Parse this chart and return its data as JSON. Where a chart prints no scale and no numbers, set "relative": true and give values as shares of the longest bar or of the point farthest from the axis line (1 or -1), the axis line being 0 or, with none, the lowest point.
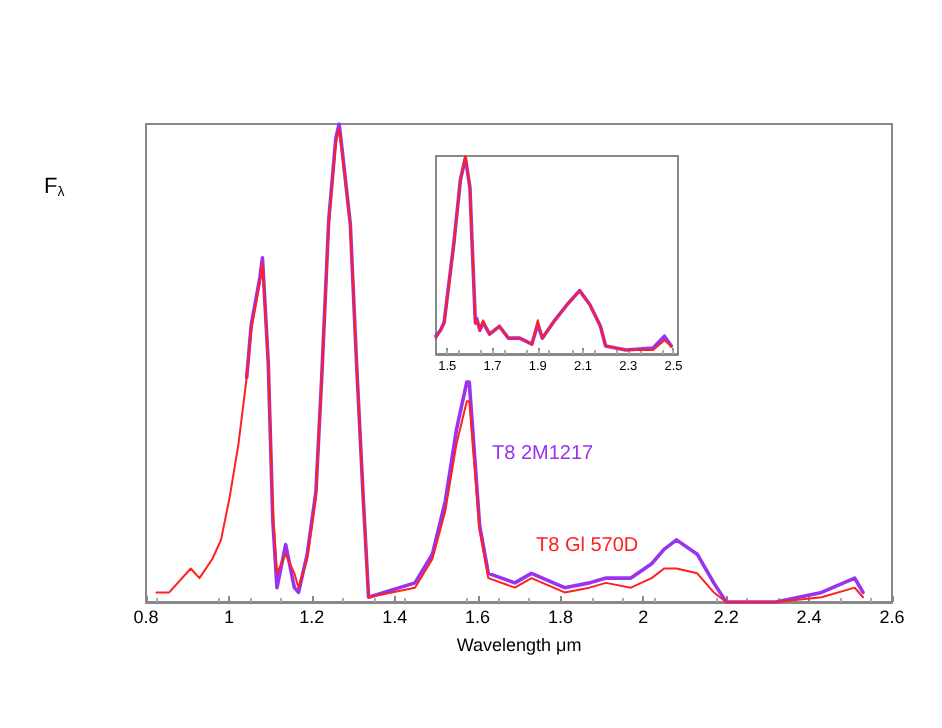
{
  "chart_data": [
    {
      "type": "line",
      "xlabel": "Wavelength μm",
      "ylabel": "F$_{λ}$",
      "xlim": [
        0.8,
        2.6
      ],
      "xticks": [
        0.8,
        1,
        1.2,
        1.4,
        1.6,
        1.8,
        2,
        2.2,
        2.4,
        2.6
      ],
      "relative": true,
      "marker": "none",
      "line_style": "solid",
      "grid": false,
      "legend": false,
      "series": [
        {
          "name": "T8 2M1217",
          "color": "#9933ee",
          "x": [
            1.043,
            1.054,
            1.075,
            1.081,
            1.095,
            1.106,
            1.116,
            1.137,
            1.158,
            1.168,
            1.189,
            1.21,
            1.224,
            1.241,
            1.258,
            1.266,
            1.274,
            1.293,
            1.308,
            1.324,
            1.337,
            1.449,
            1.491,
            1.522,
            1.549,
            1.574,
            1.58,
            1.605,
            1.626,
            1.69,
            1.73,
            1.81,
            1.87,
            1.91,
            1.97,
            2.02,
            2.05,
            2.08,
            2.13,
            2.17,
            2.2,
            2.32,
            2.43,
            2.51,
            2.53
          ],
          "values": [
            0.47,
            0.58,
            0.68,
            0.72,
            0.5,
            0.17,
            0.03,
            0.12,
            0.03,
            0.02,
            0.1,
            0.23,
            0.47,
            0.8,
            0.97,
            1.0,
            0.94,
            0.79,
            0.5,
            0.22,
            0.01,
            0.04,
            0.1,
            0.21,
            0.36,
            0.46,
            0.46,
            0.16,
            0.06,
            0.04,
            0.06,
            0.03,
            0.04,
            0.05,
            0.05,
            0.08,
            0.11,
            0.13,
            0.1,
            0.04,
            0.0,
            0.0,
            0.02,
            0.05,
            0.02
          ]
        },
        {
          "name": "T8 Gl 570D",
          "color": "#ff2020",
          "x": [
            0.825,
            0.856,
            0.908,
            0.929,
            0.96,
            0.981,
            1.002,
            1.023,
            1.043,
            1.054,
            1.075,
            1.081,
            1.095,
            1.106,
            1.116,
            1.137,
            1.158,
            1.168,
            1.189,
            1.21,
            1.224,
            1.241,
            1.258,
            1.266,
            1.274,
            1.293,
            1.308,
            1.324,
            1.337,
            1.449,
            1.491,
            1.522,
            1.549,
            1.574,
            1.58,
            1.605,
            1.626,
            1.69,
            1.73,
            1.81,
            1.87,
            1.91,
            1.97,
            2.02,
            2.05,
            2.08,
            2.13,
            2.17,
            2.2,
            2.32,
            2.43,
            2.51,
            2.53
          ],
          "values": [
            0.02,
            0.02,
            0.07,
            0.05,
            0.09,
            0.13,
            0.22,
            0.33,
            0.47,
            0.57,
            0.67,
            0.71,
            0.5,
            0.19,
            0.06,
            0.1,
            0.06,
            0.03,
            0.09,
            0.22,
            0.47,
            0.79,
            0.96,
            0.99,
            0.93,
            0.79,
            0.5,
            0.22,
            0.01,
            0.03,
            0.09,
            0.19,
            0.33,
            0.42,
            0.42,
            0.15,
            0.05,
            0.03,
            0.05,
            0.02,
            0.03,
            0.04,
            0.03,
            0.05,
            0.07,
            0.07,
            0.06,
            0.02,
            0.0,
            0.0,
            0.01,
            0.03,
            0.01
          ]
        }
      ]
    },
    {
      "type": "line",
      "xlim": [
        1.45,
        2.52
      ],
      "xticks": [
        1.5,
        1.7,
        1.9,
        2.1,
        2.3,
        2.5
      ],
      "relative": true,
      "marker": "none",
      "line_style": "solid",
      "grid": false,
      "legend": false,
      "series": [
        {
          "color": "#9933ee",
          "x": [
            1.45,
            1.47,
            1.486,
            1.529,
            1.558,
            1.58,
            1.6,
            1.61,
            1.624,
            1.63,
            1.644,
            1.658,
            1.687,
            1.73,
            1.77,
            1.82,
            1.874,
            1.9,
            1.92,
            1.975,
            2.03,
            2.085,
            2.13,
            2.177,
            2.2,
            2.29,
            2.41,
            2.46,
            2.49
          ],
          "values": [
            0.09,
            0.12,
            0.16,
            0.56,
            0.88,
            0.99,
            0.84,
            0.55,
            0.16,
            0.18,
            0.12,
            0.16,
            0.1,
            0.14,
            0.08,
            0.08,
            0.05,
            0.15,
            0.08,
            0.17,
            0.25,
            0.32,
            0.25,
            0.14,
            0.04,
            0.02,
            0.03,
            0.09,
            0.04
          ]
        },
        {
          "color": "#ff2020",
          "x": [
            1.45,
            1.47,
            1.486,
            1.529,
            1.558,
            1.58,
            1.6,
            1.61,
            1.624,
            1.63,
            1.644,
            1.658,
            1.687,
            1.73,
            1.77,
            1.82,
            1.874,
            1.9,
            1.92,
            1.975,
            2.03,
            2.085,
            2.13,
            2.177,
            2.2,
            2.29,
            2.41,
            2.46,
            2.49
          ],
          "values": [
            0.08,
            0.12,
            0.15,
            0.55,
            0.88,
            1.0,
            0.85,
            0.55,
            0.15,
            0.17,
            0.12,
            0.17,
            0.1,
            0.14,
            0.08,
            0.08,
            0.05,
            0.17,
            0.08,
            0.17,
            0.25,
            0.32,
            0.25,
            0.14,
            0.04,
            0.02,
            0.02,
            0.07,
            0.04
          ]
        }
      ]
    }
  ]
}
